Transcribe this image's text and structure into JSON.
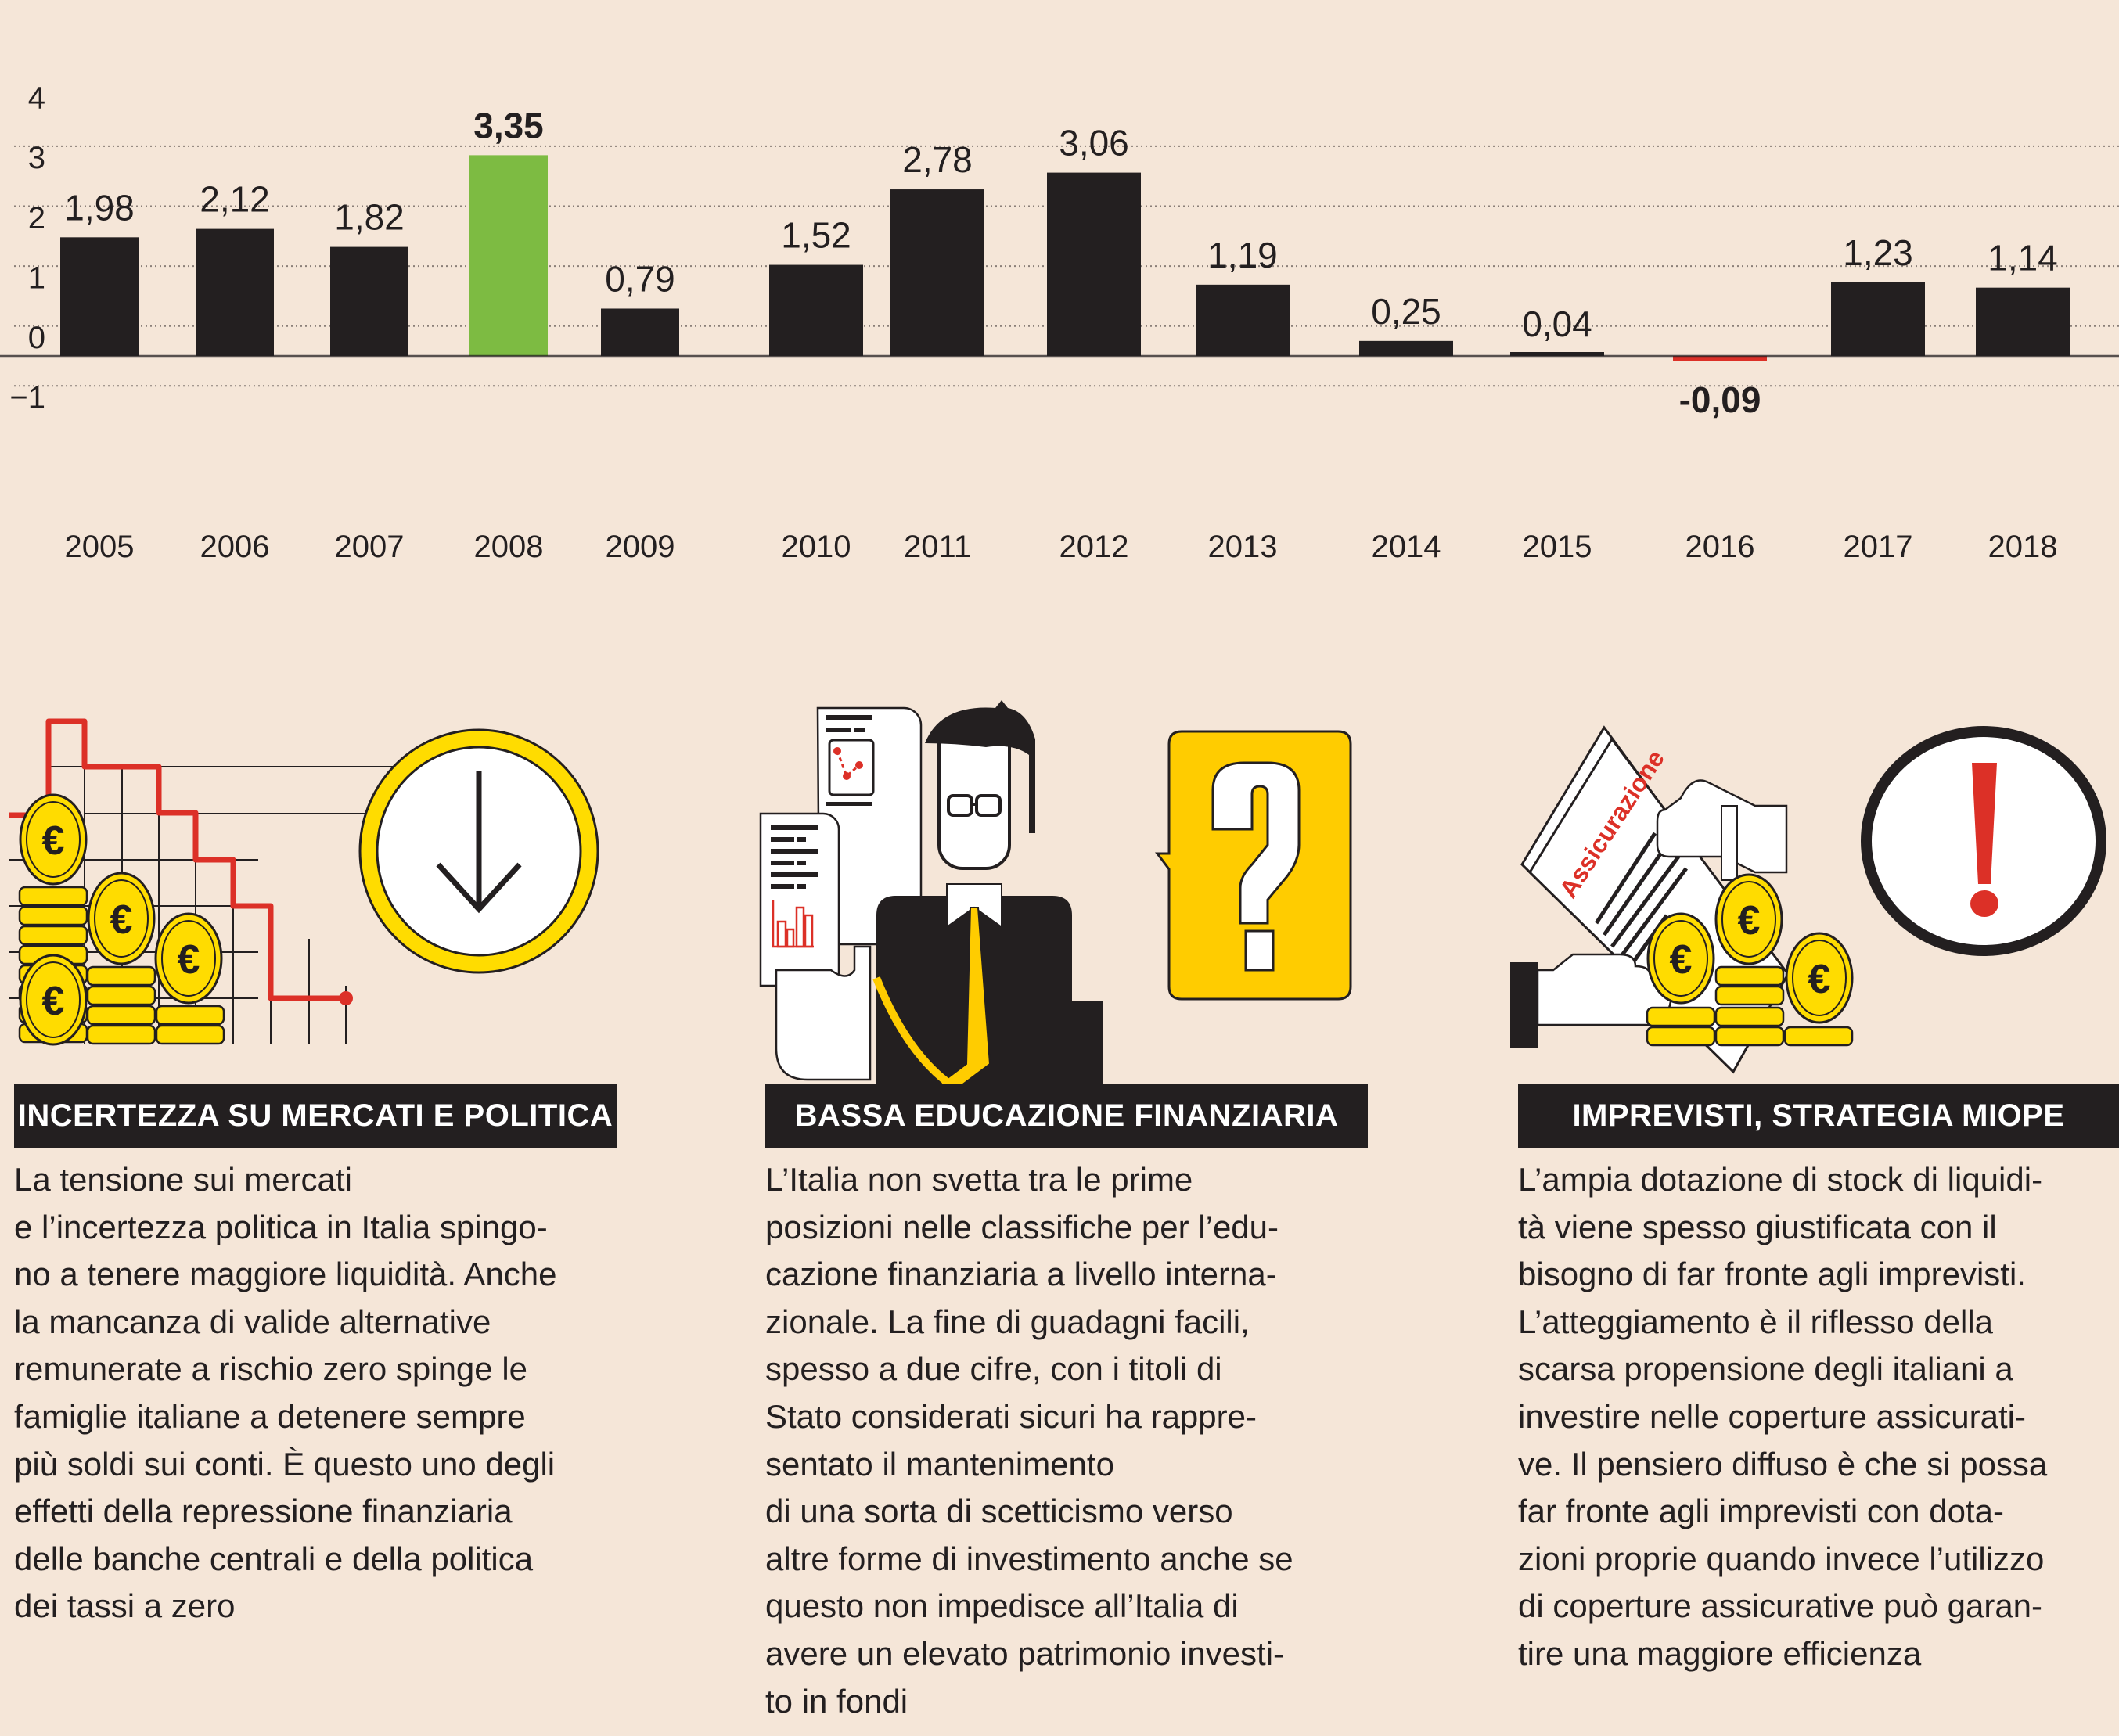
{
  "chart_data": {
    "type": "bar",
    "title": "",
    "xlabel": "",
    "ylabel": "",
    "ylim": [
      -1,
      4
    ],
    "yticks": [
      "4",
      "3",
      "2",
      "1",
      "0",
      "−1"
    ],
    "ytick_values": [
      4,
      3,
      2,
      1,
      0,
      -1
    ],
    "grid": true,
    "categories": [
      "2005",
      "2006",
      "2007",
      "2008",
      "2009",
      "2010",
      "2011",
      "2012",
      "2013",
      "2014",
      "2015",
      "2016",
      "2017",
      "2018"
    ],
    "values": [
      1.98,
      2.12,
      1.82,
      3.35,
      0.79,
      1.52,
      2.78,
      3.06,
      1.19,
      0.25,
      0.04,
      -0.09,
      1.23,
      1.14
    ],
    "labels": [
      "1,98",
      "2,12",
      "1,82",
      "3,35",
      "0,79",
      "1,52",
      "2,78",
      "3,06",
      "1,19",
      "0,25",
      "0,04",
      "-0,09",
      "1,23",
      "1,14"
    ],
    "highlight": {
      "max": {
        "category": "2008",
        "color": "#7dbb42",
        "bold_label": true
      },
      "min": {
        "category": "2016",
        "color": "#dc3027",
        "bold_label": true
      }
    },
    "bar_color": "#231f20"
  },
  "columns": [
    {
      "title": "INCERTEZZA SU MERCATI E POLITICA",
      "illustration": "euro-coins-falling-chart",
      "text": "La tensione sui mercati\ne l’incertezza politica in Italia spingo-\nno a tenere maggiore liquidità. Anche\nla mancanza di valide alternative\nremunerate a rischio zero spinge le\nfamiglie italiane a detenere sempre\npiù soldi sui conti. È questo uno degli\neffetti della repressione finanziaria\ndelle banche centrali e della politica\ndei tassi a zero"
    },
    {
      "title": "BASSA EDUCAZIONE FINANZIARIA",
      "illustration": "confused-man-with-documents",
      "text": "L’Italia non svetta tra le prime\nposizioni nelle classifiche per l’edu-\ncazione finanziaria a livello interna-\nzionale. La fine di guadagni facili,\nspesso a due cifre, con i titoli di\nStato considerati sicuri ha rappre-\nsentato il mantenimento\ndi una sorta di scetticismo verso\naltre forme di investimento anche se\nquesto non impedisce all’Italia di\navere un elevato patrimonio investi-\nto in fondi"
    },
    {
      "title": "IMPREVISTI, STRATEGIA MIOPE",
      "illustration": "insurance-document-and-coins",
      "document_label": "Assicurazione",
      "text": "L’ampia dotazione di stock di liquidi-\ntà viene spesso giustificata con il\nbisogno di far fronte agli imprevisti.\nL’atteggiamento è il riflesso della\nscarsa propensione degli italiani a\ninvestire nelle coperture assicurati-\nve. Il pensiero diffuso è che si possa\nfar fronte agli imprevisti con dota-\nzioni proprie quando invece l’utilizzo\ndi coperture assicurative può garan-\ntire una maggiore efficienza"
    }
  ],
  "colors": {
    "background": "#f5e6d8",
    "ink": "#231f20",
    "highlight_green": "#7dbb42",
    "highlight_red": "#dc3027",
    "coin_yellow": "#ffdc00",
    "bubble_yellow": "#ffcc00"
  }
}
